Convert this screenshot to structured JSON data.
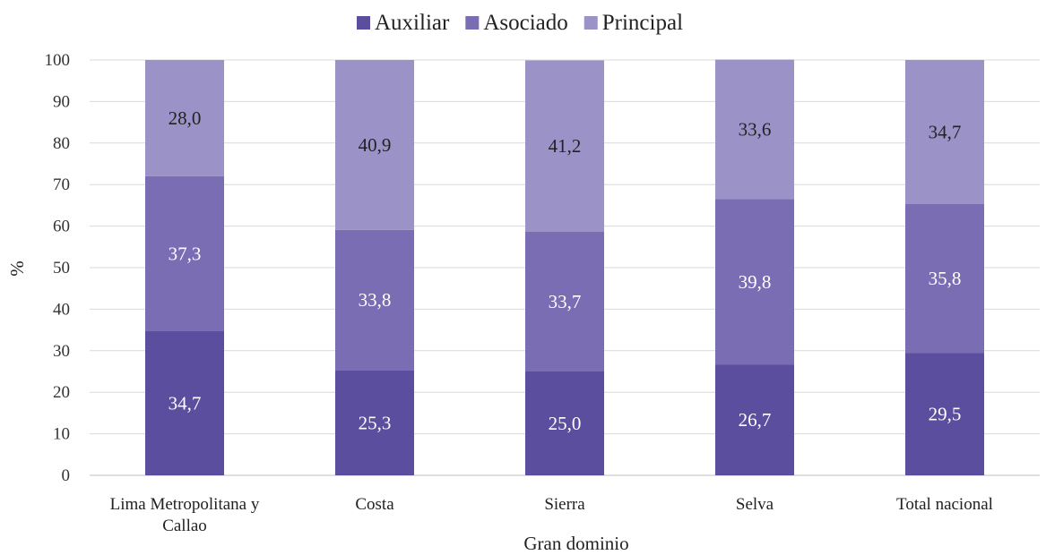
{
  "chart_data": {
    "type": "bar",
    "stacked": true,
    "title": "",
    "xlabel": "Gran dominio",
    "ylabel": "%",
    "ylim": [
      0,
      100
    ],
    "yticks": [
      "0",
      "10",
      "20",
      "30",
      "40",
      "50",
      "60",
      "70",
      "80",
      "90",
      "100"
    ],
    "grid": true,
    "legend_position": "top-center",
    "categories": [
      "Lima Metropolitana y Callao",
      "Costa",
      "Sierra",
      "Selva",
      "Total nacional"
    ],
    "category_lines": [
      [
        "Lima Metropolitana y",
        "Callao"
      ],
      [
        "Costa"
      ],
      [
        "Sierra"
      ],
      [
        "Selva"
      ],
      [
        "Total nacional"
      ]
    ],
    "series": [
      {
        "name": "Auxiliar",
        "color": "#5b4e9e",
        "label_color": "#ffffff",
        "values": [
          34.7,
          25.3,
          25.0,
          26.7,
          29.5
        ],
        "labels": [
          "34,7",
          "25,3",
          "25,0",
          "26,7",
          "29,5"
        ]
      },
      {
        "name": "Asociado",
        "color": "#7b6db3",
        "label_color": "#ffffff",
        "values": [
          37.3,
          33.8,
          33.7,
          39.8,
          35.8
        ],
        "labels": [
          "37,3",
          "33,8",
          "33,7",
          "39,8",
          "35,8"
        ]
      },
      {
        "name": "Principal",
        "color": "#9b93c8",
        "label_color": "#222222",
        "values": [
          28.0,
          40.9,
          41.2,
          33.6,
          34.7
        ],
        "labels": [
          "28,0",
          "40,9",
          "41,2",
          "33,6",
          "34,7"
        ]
      }
    ],
    "colors": {
      "grid": "#d9d9d9",
      "axis": "#bfbfbf"
    }
  }
}
